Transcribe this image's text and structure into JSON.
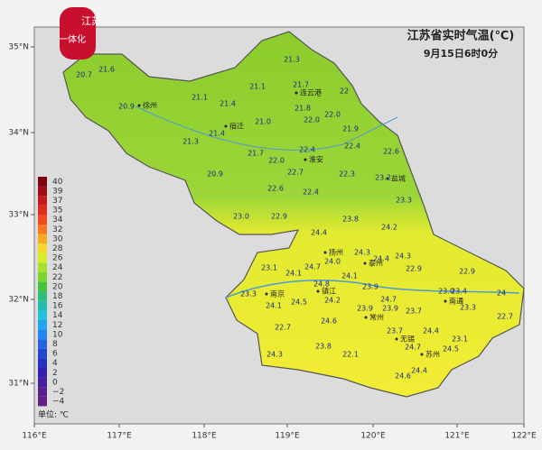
{
  "header": {
    "title": "江苏省实时气温(℃)",
    "subtitle": "9月15日6时0分",
    "logo": [
      "江苏",
      "一体化"
    ]
  },
  "axes": {
    "lat": [
      "35°N",
      "34°N",
      "33°N",
      "32°N",
      "31°N"
    ],
    "lon": [
      "116°E",
      "117°E",
      "118°E",
      "119°E",
      "120°E",
      "121°E",
      "122°E"
    ]
  },
  "legend": {
    "unit": "单位: ℃",
    "items": [
      {
        "label": "40",
        "color": "#7a0010"
      },
      {
        "label": "39",
        "color": "#a00c14"
      },
      {
        "label": "37",
        "color": "#c41a1a"
      },
      {
        "label": "35",
        "color": "#e02a1e"
      },
      {
        "label": "34",
        "color": "#ef4a20"
      },
      {
        "label": "32",
        "color": "#f57a22"
      },
      {
        "label": "30",
        "color": "#f8aa22"
      },
      {
        "label": "28",
        "color": "#f6d82a"
      },
      {
        "label": "26",
        "color": "#d6ee2a"
      },
      {
        "label": "24",
        "color": "#a8e030"
      },
      {
        "label": "22",
        "color": "#7ed432"
      },
      {
        "label": "20",
        "color": "#44c23e"
      },
      {
        "label": "18",
        "color": "#2ebc78"
      },
      {
        "label": "16",
        "color": "#24bcaa"
      },
      {
        "label": "14",
        "color": "#22c0dc"
      },
      {
        "label": "12",
        "color": "#22a4f0"
      },
      {
        "label": "10",
        "color": "#2284ee"
      },
      {
        "label": "8",
        "color": "#2264e0"
      },
      {
        "label": "6",
        "color": "#2246d0"
      },
      {
        "label": "4",
        "color": "#2430c0"
      },
      {
        "label": "2",
        "color": "#3220b0"
      },
      {
        "label": "0",
        "color": "#4420a0"
      },
      {
        "label": "−2",
        "color": "#562090"
      },
      {
        "label": "−4",
        "color": "#642080"
      }
    ]
  },
  "cities": [
    "徐州",
    "宿迁",
    "连云港",
    "淮安",
    "盐城",
    "扬州",
    "泰州",
    "南京",
    "镇江",
    "常州",
    "南通",
    "无锡",
    "苏州"
  ],
  "readings": [
    "20.7",
    "21.6",
    "21.3",
    "20.9",
    "21.1",
    "21.4",
    "21.1",
    "21.7",
    "22",
    "21.8",
    "21.0",
    "22.0",
    "22.0",
    "21.9",
    "21.4",
    "21.3",
    "21.7",
    "22.4",
    "22.4",
    "22.6",
    "22.0",
    "22.7",
    "22.3",
    "23.2",
    "20.9",
    "22.6",
    "22.4",
    "23.3",
    "23.0",
    "22.9",
    "23.8",
    "24.2",
    "24.4",
    "24.3",
    "24.4",
    "24.3",
    "23.1",
    "24.0",
    "24.1",
    "24.7",
    "24.1",
    "22.9",
    "22.9",
    "24.8",
    "23.9",
    "23.3",
    "24.2",
    "24.7",
    "23.0",
    "23.4",
    "24",
    "24.1",
    "24.5",
    "23.9",
    "23.9",
    "23.7",
    "23.3",
    "22.7",
    "24.6",
    "22.7",
    "23.7",
    "24.4",
    "23.1",
    "24.7",
    "24.5",
    "23.8",
    "22.1",
    "24.3",
    "24.4",
    "24.6"
  ]
}
